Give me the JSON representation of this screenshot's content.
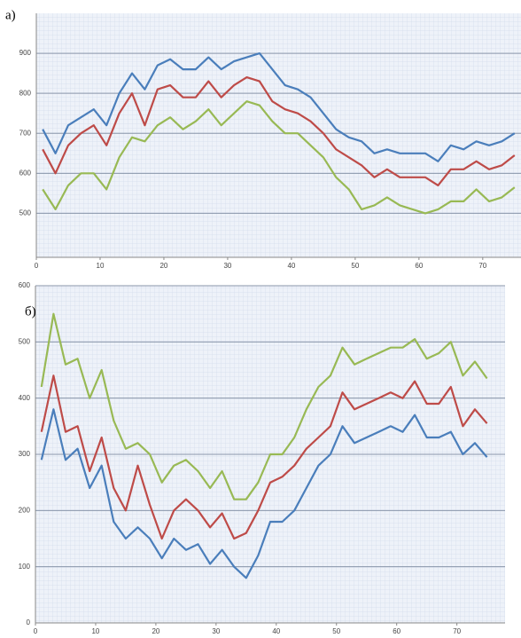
{
  "chart_data": [
    {
      "type": "line",
      "label": "а)",
      "x": [
        1,
        3,
        5,
        7,
        9,
        11,
        13,
        15,
        17,
        19,
        21,
        23,
        25,
        27,
        29,
        31,
        33,
        35,
        37,
        39,
        41,
        43,
        45,
        47,
        49,
        51,
        53,
        55,
        57,
        59,
        61,
        63,
        65,
        67,
        69,
        71,
        73,
        75
      ],
      "series": [
        {
          "color": "#4a7ebb",
          "values": [
            710,
            650,
            720,
            740,
            760,
            720,
            800,
            850,
            810,
            870,
            885,
            860,
            860,
            890,
            860,
            880,
            890,
            900,
            860,
            820,
            810,
            790,
            750,
            710,
            690,
            680,
            650,
            660,
            650,
            650,
            650,
            630,
            670,
            660,
            680,
            670,
            680,
            700
          ]
        },
        {
          "color": "#be4b48",
          "values": [
            660,
            600,
            670,
            700,
            720,
            670,
            750,
            800,
            720,
            810,
            820,
            790,
            790,
            830,
            790,
            820,
            840,
            830,
            780,
            760,
            750,
            730,
            700,
            660,
            640,
            620,
            590,
            610,
            590,
            590,
            590,
            570,
            610,
            610,
            630,
            610,
            620,
            645
          ]
        },
        {
          "color": "#98b954",
          "values": [
            560,
            510,
            570,
            600,
            600,
            560,
            640,
            690,
            680,
            720,
            740,
            710,
            730,
            760,
            720,
            750,
            780,
            770,
            730,
            700,
            700,
            670,
            640,
            590,
            560,
            510,
            520,
            540,
            520,
            510,
            500,
            510,
            530,
            530,
            560,
            530,
            540,
            565
          ]
        }
      ],
      "xlim": [
        0,
        76
      ],
      "xticks": [
        0,
        10,
        20,
        30,
        40,
        50,
        60,
        70
      ],
      "ylim": [
        390,
        1000
      ],
      "yticks": [
        500,
        600,
        700,
        800,
        900
      ],
      "grid": true
    },
    {
      "type": "line",
      "label": "б)",
      "x": [
        1,
        3,
        5,
        7,
        9,
        11,
        13,
        15,
        17,
        19,
        21,
        23,
        25,
        27,
        29,
        31,
        33,
        35,
        37,
        39,
        41,
        43,
        45,
        47,
        49,
        51,
        53,
        55,
        57,
        59,
        61,
        63,
        65,
        67,
        69,
        71,
        73,
        75
      ],
      "series": [
        {
          "color": "#4a7ebb",
          "values": [
            290,
            380,
            290,
            310,
            240,
            280,
            180,
            150,
            170,
            150,
            115,
            150,
            130,
            140,
            105,
            130,
            100,
            80,
            120,
            180,
            180,
            200,
            240,
            280,
            300,
            350,
            320,
            330,
            340,
            350,
            340,
            370,
            330,
            330,
            340,
            300,
            320,
            295
          ]
        },
        {
          "color": "#be4b48",
          "values": [
            340,
            440,
            340,
            350,
            270,
            330,
            240,
            200,
            280,
            210,
            150,
            200,
            220,
            200,
            170,
            195,
            150,
            160,
            200,
            250,
            260,
            280,
            310,
            330,
            350,
            410,
            380,
            390,
            400,
            410,
            400,
            430,
            390,
            390,
            420,
            350,
            380,
            355
          ]
        },
        {
          "color": "#98b954",
          "values": [
            420,
            550,
            460,
            470,
            400,
            450,
            360,
            310,
            320,
            300,
            250,
            280,
            290,
            270,
            240,
            270,
            220,
            220,
            250,
            300,
            300,
            330,
            380,
            420,
            440,
            490,
            460,
            470,
            480,
            490,
            490,
            505,
            470,
            480,
            500,
            440,
            465,
            435
          ]
        }
      ],
      "xlim": [
        0,
        78
      ],
      "xticks": [
        0,
        10,
        20,
        30,
        40,
        50,
        60,
        70
      ],
      "ylim": [
        0,
        600
      ],
      "yticks": [
        0,
        100,
        200,
        300,
        400,
        500,
        600
      ],
      "grid": true
    }
  ]
}
